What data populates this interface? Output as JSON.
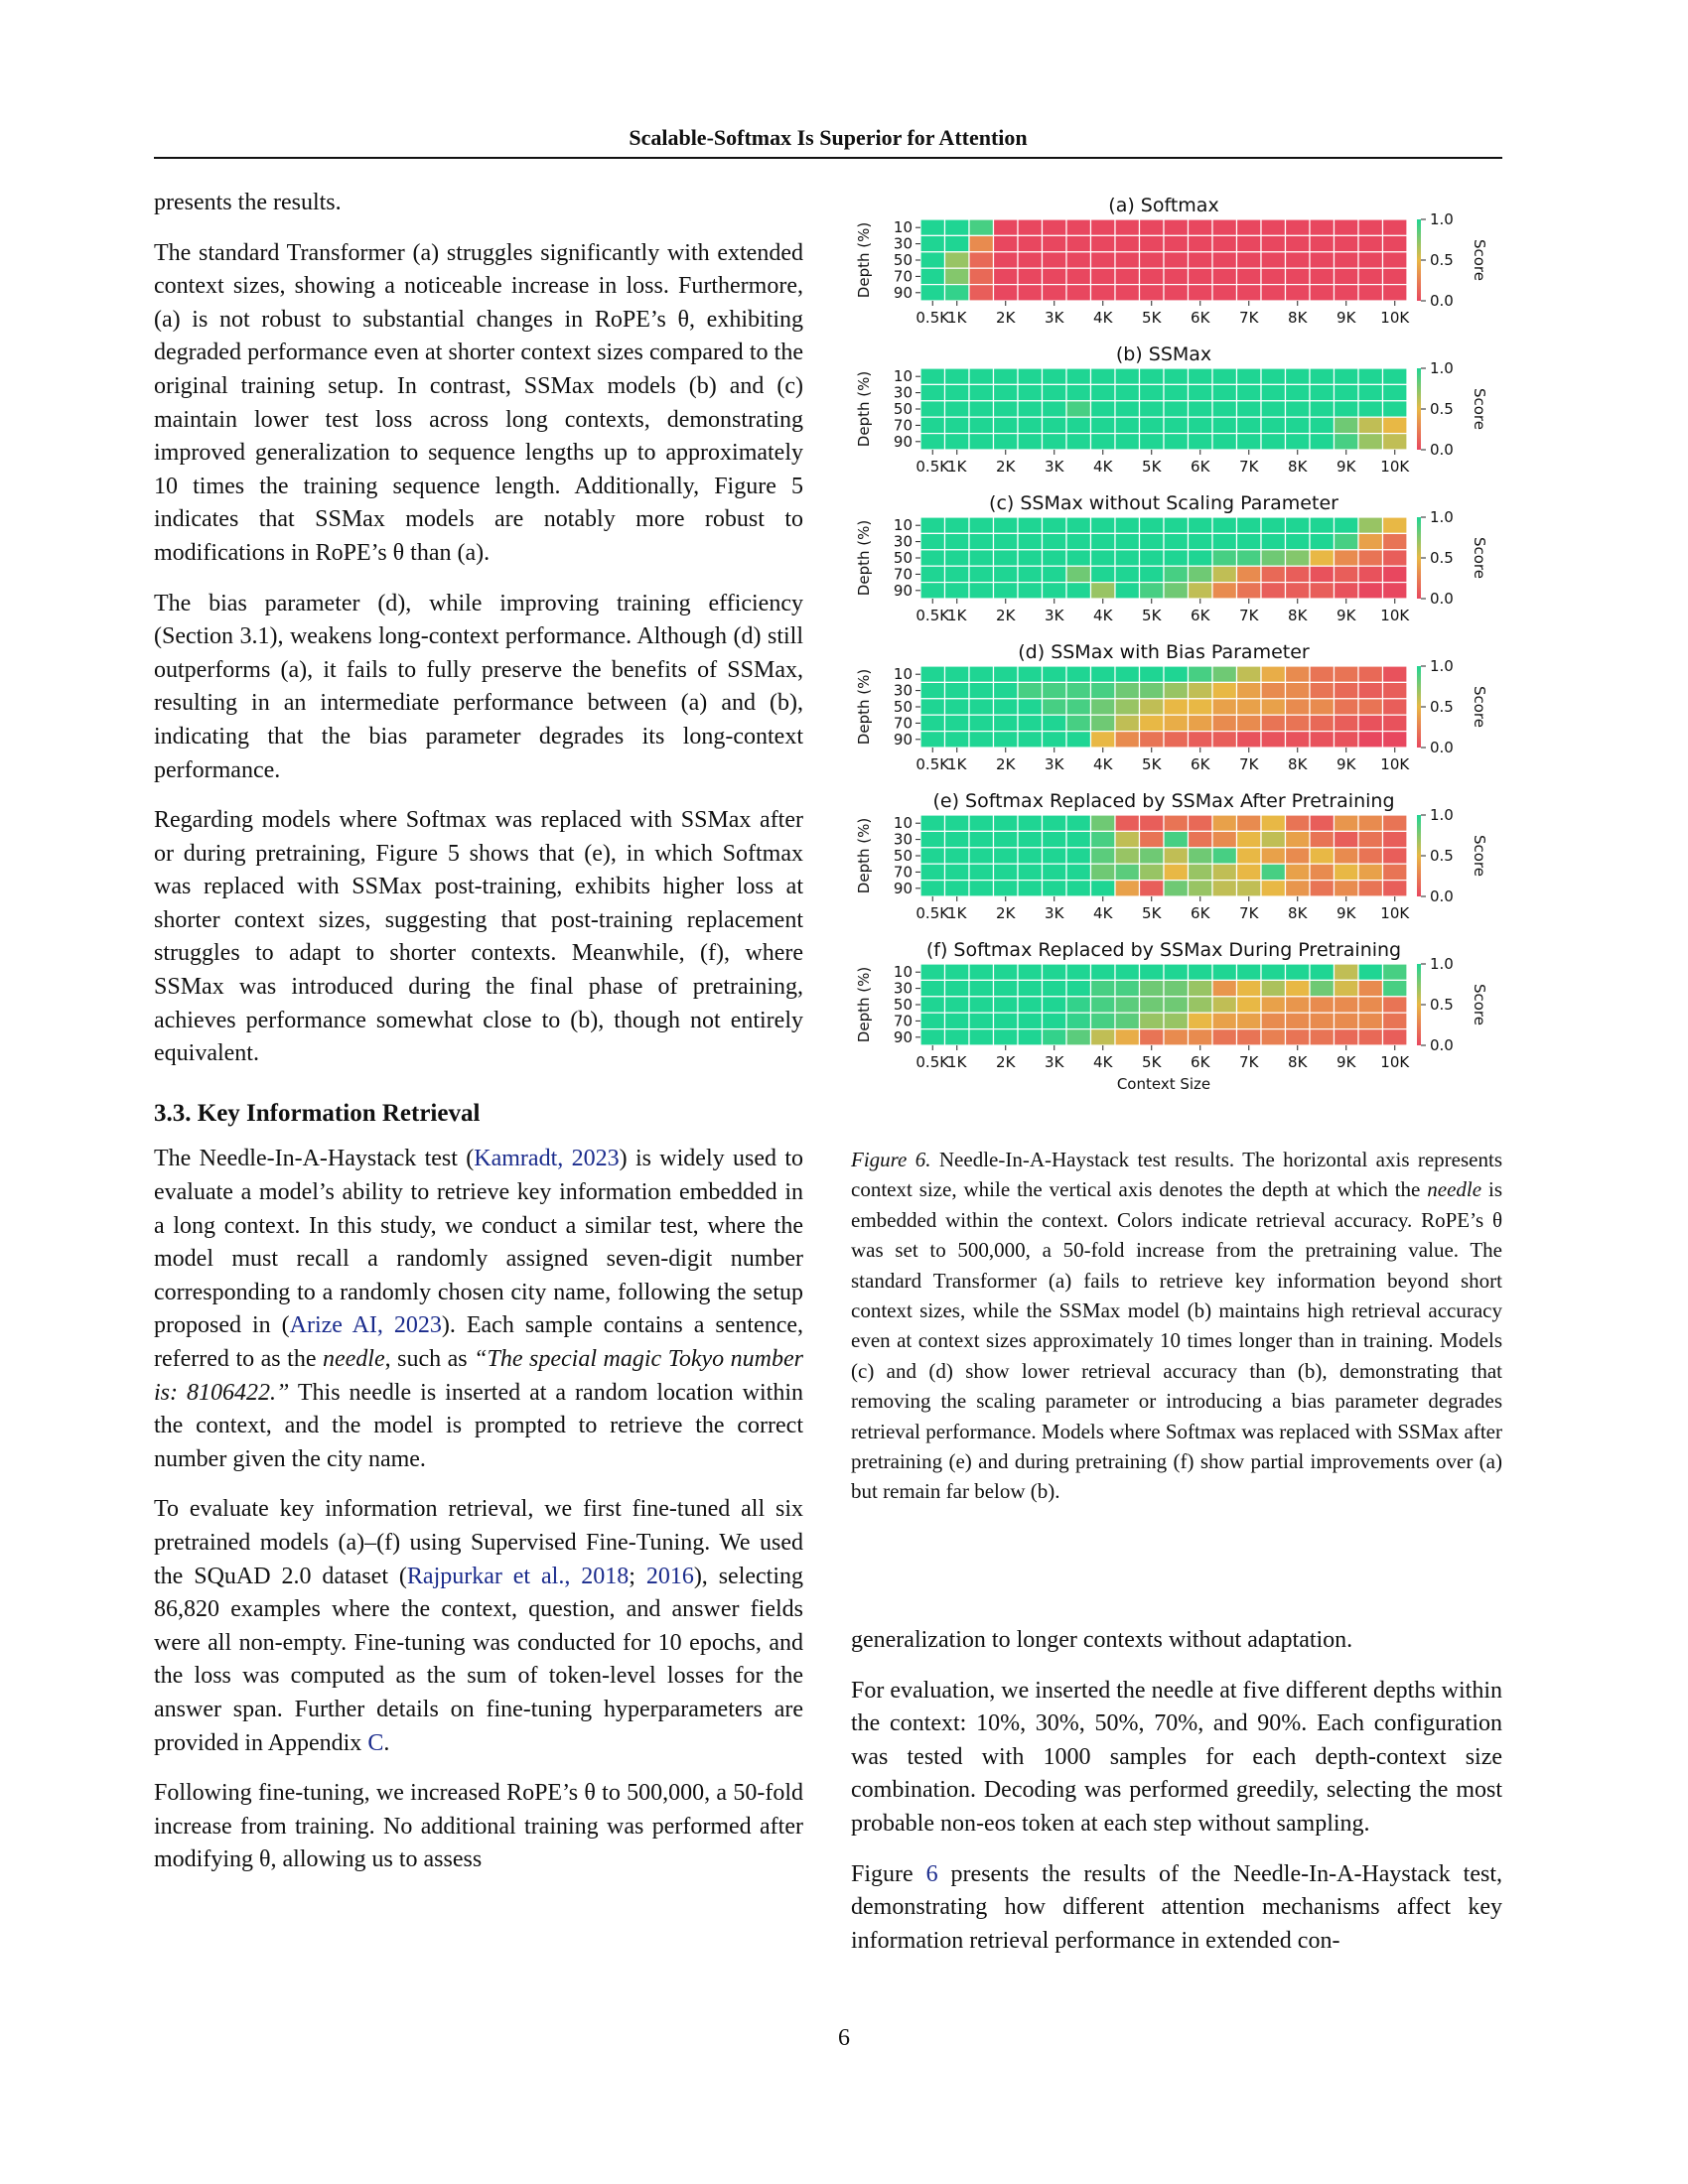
{
  "header": {
    "title": "Scalable-Softmax Is Superior for Attention"
  },
  "left_column": {
    "p0": "presents the results.",
    "p1": "The standard Transformer (a) struggles significantly with extended context sizes, showing a noticeable increase in loss. Furthermore, (a) is not robust to substantial changes in RoPE’s θ, exhibiting degraded performance even at shorter context sizes compared to the original training setup. In contrast, SSMax models (b) and (c) maintain lower test loss across long contexts, demonstrating improved generaliza­tion to sequence lengths up to approximately 10 times the training sequence length. Additionally, Figure 5 indicates that SSMax models are notably more robust to modifications in RoPE’s θ than (a).",
    "p2": "The bias parameter (d), while improving training efficiency (Section 3.1), weakens long-context performance. Although (d) still outperforms (a), it fails to fully preserve the ben­efits of SSMax, resulting in an intermediate performance between (a) and (b), indicating that the bias parameter de­grades its long-context performance.",
    "p3": "Regarding models where Softmax was replaced with SSMax after or during pretraining, Figure 5 shows that (e), in which Softmax was replaced with SSMax post-training, exhibits higher loss at shorter context sizes, suggesting that post-training replacement struggles to adapt to shorter contexts. Meanwhile, (f), where SSMax was introduced during the final phase of pretraining, achieves performance somewhat close to (b), though not entirely equivalent.",
    "section_heading": "3.3. Key Information Retrieval",
    "p4_a": "The Needle-In-A-Haystack test (",
    "p4_cite1": "Kamradt, 2023",
    "p4_b": ") is widely used to evaluate a model’s ability to retrieve key information embedded in a long context. In this study, we conduct a similar test, where the model must recall a randomly as­signed seven-digit number corresponding to a randomly chosen city name, following the setup proposed in (",
    "p4_cite2": "Arize AI, 2023",
    "p4_c": "). Each sample contains a sentence, referred to as the ",
    "p4_needle": "needle",
    "p4_d": ", such as ",
    "p4_quote": "“The special magic Tokyo number is: 8106422.”",
    "p4_e": " This needle is inserted at a random location within the context, and the model is prompted to retrieve the correct number given the city name.",
    "p5_a": "To evaluate key information retrieval, we first fine-tuned all six pretrained models (a)–(f) using Supervised Fine-Tuning. We used the SQuAD 2.0 dataset (",
    "p5_cite1": "Rajpurkar et al., 2018",
    "p5_b": "; ",
    "p5_cite2": "2016",
    "p5_c": "), selecting 86,820 examples where the context, ques­tion, and answer fields were all non-empty. Fine-tuning was conducted for 10 epochs, and the loss was computed as the sum of token-level losses for the answer span. Fur­ther details on fine-tuning hyperparameters are provided in Appendix ",
    "p5_appendix": "C",
    "p5_d": ".",
    "p6": "Following fine-tuning, we increased RoPE’s θ to 500,000, a 50-fold increase from training. No additional training was performed after modifying θ, allowing us to assess"
  },
  "right_column": {
    "p0": "generalization to longer contexts without adaptation.",
    "p1": "For evaluation, we inserted the needle at five different depths within the context: 10%, 30%, 50%, 70%, and 90%. Each configuration was tested with 1000 samples for each depth-context size combination. Decoding was performed greed­ily, selecting the most probable non-eos token at each step without sampling.",
    "p2_a": "Figure ",
    "p2_ref": "6",
    "p2_b": " presents the results of the Needle-In-A-Haystack test, demonstrating how different attention mechanisms af­fect key information retrieval performance in extended con-"
  },
  "figure": {
    "caption_label": "Figure 6.",
    "caption_a": " Needle-In-A-Haystack test results. The horizontal axis represents context size, while the vertical axis denotes the depth at which the ",
    "caption_needle": "needle",
    "caption_b": " is embedded within the context. Colors indicate retrieval accuracy. RoPE’s θ was set to 500,000, a 50-fold increase from the pretraining value. The standard Transformer (a) fails to retrieve key information beyond short context sizes, while the SSMax model (b) maintains high retrieval accuracy even at context sizes approximately 10 times longer than in training. Models (c) and (d) show lower retrieval accuracy than (b), demonstrating that removing the scaling parameter or introducing a bias parameter degrades retrieval performance. Models where Softmax was re­placed with SSMax after pretraining (e) and during pretraining (f) show partial improvements over (a) but remain far below (b)."
  },
  "page_number": "6",
  "colors": {
    "low": "#e8475f",
    "mid": "#e8b845",
    "high": "#1fd593",
    "link": "#1a2b8c"
  },
  "chart_data": [
    {
      "type": "heatmap",
      "title": "(a) Softmax",
      "x": [
        "0.5K",
        "1K",
        "1.5K",
        "2K",
        "2.5K",
        "3K",
        "3.5K",
        "4K",
        "4.5K",
        "5K",
        "5.5K",
        "6K",
        "6.5K",
        "7K",
        "7.5K",
        "8K",
        "8.5K",
        "9K",
        "9.5K",
        "10K"
      ],
      "xtick_labels": [
        "0.5K",
        "1K",
        "2K",
        "3K",
        "4K",
        "5K",
        "6K",
        "7K",
        "8K",
        "9K",
        "10K"
      ],
      "y": [
        10,
        30,
        50,
        70,
        90
      ],
      "ylabel": "Depth (%)",
      "colorbar": {
        "label": "Score",
        "ticks": [
          0.0,
          0.5,
          1.0
        ]
      },
      "values": [
        [
          1.0,
          1.0,
          0.9,
          0,
          0,
          0,
          0,
          0,
          0,
          0,
          0,
          0,
          0,
          0,
          0,
          0,
          0,
          0,
          0,
          0
        ],
        [
          1.0,
          1.0,
          0.3,
          0,
          0,
          0,
          0,
          0,
          0,
          0,
          0,
          0,
          0,
          0,
          0,
          0,
          0,
          0,
          0,
          0
        ],
        [
          1.0,
          0.7,
          0.15,
          0,
          0,
          0,
          0,
          0,
          0,
          0,
          0,
          0,
          0,
          0,
          0,
          0,
          0,
          0,
          0,
          0
        ],
        [
          1.0,
          0.75,
          0.15,
          0,
          0,
          0,
          0,
          0,
          0,
          0,
          0,
          0,
          0,
          0,
          0,
          0,
          0,
          0,
          0,
          0
        ],
        [
          1.0,
          0.95,
          0.1,
          0,
          0,
          0,
          0,
          0,
          0,
          0,
          0,
          0,
          0,
          0,
          0,
          0,
          0,
          0,
          0,
          0
        ]
      ]
    },
    {
      "type": "heatmap",
      "title": "(b) SSMax",
      "x": [
        "0.5K",
        "1K",
        "1.5K",
        "2K",
        "2.5K",
        "3K",
        "3.5K",
        "4K",
        "4.5K",
        "5K",
        "5.5K",
        "6K",
        "6.5K",
        "7K",
        "7.5K",
        "8K",
        "8.5K",
        "9K",
        "9.5K",
        "10K"
      ],
      "xtick_labels": [
        "0.5K",
        "1K",
        "2K",
        "3K",
        "4K",
        "5K",
        "6K",
        "7K",
        "8K",
        "9K",
        "10K"
      ],
      "y": [
        10,
        30,
        50,
        70,
        90
      ],
      "ylabel": "Depth (%)",
      "colorbar": {
        "label": "Score",
        "ticks": [
          0.0,
          0.5,
          1.0
        ]
      },
      "values": [
        [
          1,
          1,
          1,
          1,
          1,
          1,
          1,
          1,
          1,
          1,
          1,
          1,
          1,
          1,
          1,
          1,
          1,
          1,
          1,
          1
        ],
        [
          1,
          1,
          1,
          1,
          1,
          1,
          1,
          1,
          1,
          1,
          1,
          1,
          1,
          1,
          1,
          1,
          1,
          1,
          1,
          1
        ],
        [
          1,
          1,
          1,
          1,
          1,
          1,
          0.9,
          1,
          1,
          1,
          1,
          1,
          1,
          1,
          1,
          1,
          1,
          1,
          1,
          1
        ],
        [
          1,
          1,
          1,
          1,
          1,
          1,
          1,
          1,
          1,
          1,
          1,
          1,
          1,
          1,
          1,
          1,
          1,
          0.8,
          0.6,
          0.5
        ],
        [
          1,
          1,
          1,
          1,
          1,
          1,
          1,
          1,
          1,
          1,
          1,
          1,
          1,
          1,
          1,
          1,
          1,
          0.9,
          0.7,
          0.6
        ]
      ]
    },
    {
      "type": "heatmap",
      "title": "(c) SSMax without Scaling Parameter",
      "x": [
        "0.5K",
        "1K",
        "1.5K",
        "2K",
        "2.5K",
        "3K",
        "3.5K",
        "4K",
        "4.5K",
        "5K",
        "5.5K",
        "6K",
        "6.5K",
        "7K",
        "7.5K",
        "8K",
        "8.5K",
        "9K",
        "9.5K",
        "10K"
      ],
      "xtick_labels": [
        "0.5K",
        "1K",
        "2K",
        "3K",
        "4K",
        "5K",
        "6K",
        "7K",
        "8K",
        "9K",
        "10K"
      ],
      "y": [
        10,
        30,
        50,
        70,
        90
      ],
      "ylabel": "Depth (%)",
      "colorbar": {
        "label": "Score",
        "ticks": [
          0.0,
          0.5,
          1.0
        ]
      },
      "values": [
        [
          1,
          1,
          1,
          1,
          1,
          1,
          1,
          1,
          1,
          1,
          1,
          1,
          1,
          1,
          1,
          1,
          1,
          1,
          0.7,
          0.5
        ],
        [
          1,
          1,
          1,
          1,
          1,
          1,
          1,
          1,
          1,
          1,
          1,
          1,
          1,
          1,
          1,
          1,
          1,
          0.9,
          0.4,
          0.2
        ],
        [
          1,
          1,
          1,
          1,
          1,
          1,
          1,
          1,
          1,
          1,
          1,
          1,
          0.9,
          0.9,
          0.8,
          0.75,
          0.5,
          0.3,
          0.2,
          0.1
        ],
        [
          1,
          1,
          1,
          1,
          1,
          1,
          0.8,
          1,
          1,
          1,
          0.9,
          0.8,
          0.6,
          0.3,
          0.15,
          0.1,
          0.05,
          0.1,
          0.05,
          0
        ],
        [
          1,
          1,
          1,
          1,
          1,
          1,
          1,
          0.7,
          1,
          0.9,
          0.8,
          0.6,
          0.3,
          0.2,
          0.1,
          0.1,
          0.1,
          0.05,
          0,
          0
        ]
      ]
    },
    {
      "type": "heatmap",
      "title": "(d) SSMax with Bias Parameter",
      "x": [
        "0.5K",
        "1K",
        "1.5K",
        "2K",
        "2.5K",
        "3K",
        "3.5K",
        "4K",
        "4.5K",
        "5K",
        "5.5K",
        "6K",
        "6.5K",
        "7K",
        "7.5K",
        "8K",
        "8.5K",
        "9K",
        "9.5K",
        "10K"
      ],
      "xtick_labels": [
        "0.5K",
        "1K",
        "2K",
        "3K",
        "4K",
        "5K",
        "6K",
        "7K",
        "8K",
        "9K",
        "10K"
      ],
      "y": [
        10,
        30,
        50,
        70,
        90
      ],
      "ylabel": "Depth (%)",
      "colorbar": {
        "label": "Score",
        "ticks": [
          0.0,
          0.5,
          1.0
        ]
      },
      "values": [
        [
          1,
          1,
          1,
          1,
          1,
          1,
          1,
          1,
          1,
          1,
          1,
          0.9,
          0.8,
          0.6,
          0.45,
          0.3,
          0.2,
          0.2,
          0.15,
          0.05
        ],
        [
          1,
          1,
          1,
          1,
          0.9,
          0.9,
          0.9,
          0.9,
          0.8,
          0.8,
          0.7,
          0.6,
          0.5,
          0.4,
          0.3,
          0.3,
          0.2,
          0.15,
          0.1,
          0.1
        ],
        [
          1,
          1,
          1,
          1,
          1,
          0.9,
          0.9,
          0.8,
          0.7,
          0.6,
          0.5,
          0.5,
          0.4,
          0.4,
          0.4,
          0.3,
          0.3,
          0.2,
          0.2,
          0.1
        ],
        [
          1,
          1,
          1,
          1,
          1,
          1,
          0.9,
          0.8,
          0.6,
          0.5,
          0.45,
          0.4,
          0.3,
          0.3,
          0.2,
          0.2,
          0.15,
          0.1,
          0.05,
          0.05
        ],
        [
          1,
          1,
          1,
          1,
          1,
          1,
          1,
          0.5,
          0.3,
          0.2,
          0.15,
          0.1,
          0.1,
          0.05,
          0.05,
          0.05,
          0.05,
          0.05,
          0,
          0
        ]
      ]
    },
    {
      "type": "heatmap",
      "title": "(e) Softmax Replaced by SSMax After Pretraining",
      "x": [
        "0.5K",
        "1K",
        "1.5K",
        "2K",
        "2.5K",
        "3K",
        "3.5K",
        "4K",
        "4.5K",
        "5K",
        "5.5K",
        "6K",
        "6.5K",
        "7K",
        "7.5K",
        "8K",
        "8.5K",
        "9K",
        "9.5K",
        "10K"
      ],
      "xtick_labels": [
        "0.5K",
        "1K",
        "2K",
        "3K",
        "4K",
        "5K",
        "6K",
        "7K",
        "8K",
        "9K",
        "10K"
      ],
      "y": [
        10,
        30,
        50,
        70,
        90
      ],
      "ylabel": "Depth (%)",
      "colorbar": {
        "label": "Score",
        "ticks": [
          0.0,
          0.5,
          1.0
        ]
      },
      "values": [
        [
          1,
          1,
          1,
          1,
          1,
          1,
          1,
          0.8,
          0.1,
          0.1,
          0.2,
          0.15,
          0.4,
          0.3,
          0.5,
          0.2,
          0.1,
          0.35,
          0.3,
          0.2
        ],
        [
          1,
          1,
          1,
          1,
          1,
          1,
          1,
          0.9,
          0.6,
          0.2,
          0.9,
          0.2,
          0.3,
          0.5,
          0.6,
          0.4,
          0.2,
          0.1,
          0.2,
          0.1
        ],
        [
          1,
          1,
          1,
          1,
          1,
          1,
          1,
          0.85,
          0.7,
          0.8,
          0.6,
          0.8,
          0.9,
          0.5,
          0.4,
          0.3,
          0.5,
          0.3,
          0.2,
          0.1
        ],
        [
          1,
          1,
          1,
          1,
          1,
          1,
          1,
          0.8,
          0.85,
          0.7,
          0.5,
          0.7,
          0.6,
          0.5,
          0.9,
          0.4,
          0.3,
          0.5,
          0.4,
          0.2
        ],
        [
          1,
          1,
          1,
          1,
          1,
          1,
          1,
          1,
          0.4,
          0.1,
          0.8,
          0.7,
          0.6,
          0.6,
          0.5,
          0.35,
          0.2,
          0.3,
          0.2,
          0.1
        ]
      ]
    },
    {
      "type": "heatmap",
      "title": "(f) Softmax Replaced by SSMax During Pretraining",
      "x": [
        "0.5K",
        "1K",
        "1.5K",
        "2K",
        "2.5K",
        "3K",
        "3.5K",
        "4K",
        "4.5K",
        "5K",
        "5.5K",
        "6K",
        "6.5K",
        "7K",
        "7.5K",
        "8K",
        "8.5K",
        "9K",
        "9.5K",
        "10K"
      ],
      "xtick_labels": [
        "0.5K",
        "1K",
        "2K",
        "3K",
        "4K",
        "5K",
        "6K",
        "7K",
        "8K",
        "9K",
        "10K"
      ],
      "y": [
        10,
        30,
        50,
        70,
        90
      ],
      "ylabel": "Depth (%)",
      "xlabel": "Context Size",
      "colorbar": {
        "label": "Score",
        "ticks": [
          0.0,
          0.5,
          1.0
        ]
      },
      "values": [
        [
          1,
          1,
          1,
          1,
          1,
          1,
          1,
          1,
          1,
          1,
          1,
          1,
          1,
          1,
          1,
          1,
          1,
          0.6,
          1,
          0.9
        ],
        [
          1,
          1,
          1,
          1,
          1,
          1,
          1,
          0.9,
          0.9,
          0.8,
          0.8,
          0.7,
          0.35,
          0.5,
          0.65,
          0.5,
          0.8,
          0.55,
          0.3,
          0.9
        ],
        [
          1,
          1,
          1,
          1,
          1,
          1,
          0.95,
          0.9,
          0.85,
          0.8,
          0.8,
          0.7,
          0.6,
          0.5,
          0.4,
          0.35,
          0.3,
          0.3,
          0.3,
          0.2
        ],
        [
          1,
          1,
          1,
          1,
          1,
          1,
          0.95,
          0.9,
          0.85,
          0.7,
          0.7,
          0.5,
          0.4,
          0.4,
          0.3,
          0.3,
          0.3,
          0.3,
          0.3,
          0.2
        ],
        [
          1,
          1,
          1,
          1,
          1,
          0.95,
          0.85,
          0.6,
          0.45,
          0.2,
          0.3,
          0.3,
          0.2,
          0.2,
          0.25,
          0.2,
          0.2,
          0.15,
          0.15,
          0.1
        ]
      ]
    }
  ]
}
